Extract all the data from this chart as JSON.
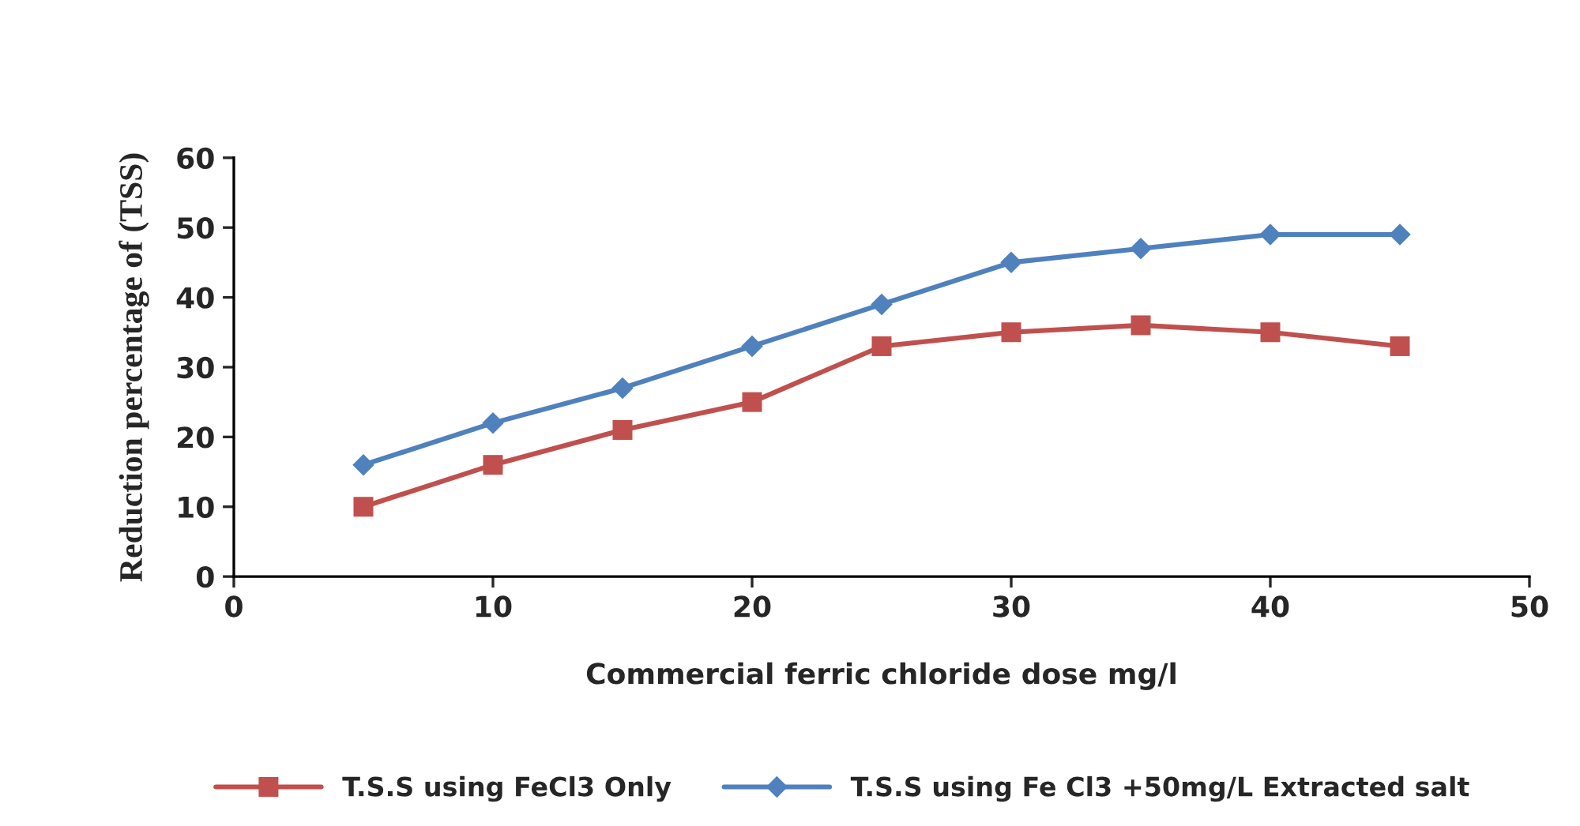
{
  "chart_data": {
    "type": "line",
    "xlabel": "Commercial ferric chloride dose mg/l",
    "ylabel": "Reduction percentage of (TSS)",
    "x": [
      5,
      10,
      15,
      20,
      25,
      30,
      35,
      40,
      45
    ],
    "series": [
      {
        "name": "T.S.S using FeCl3 Only",
        "color": "#c0504d",
        "marker": "square",
        "values": [
          10,
          16,
          21,
          25,
          33,
          35,
          36,
          35,
          33
        ]
      },
      {
        "name": "T.S.S using Fe Cl3 +50mg/L Extracted salt",
        "color": "#4f81bd",
        "marker": "diamond",
        "values": [
          16,
          22,
          27,
          33,
          39,
          45,
          47,
          49,
          49
        ]
      }
    ],
    "xlim": [
      0,
      50
    ],
    "xticks": [
      0,
      10,
      20,
      30,
      40,
      50
    ],
    "ylim": [
      0,
      60
    ],
    "yticks": [
      0,
      10,
      20,
      30,
      40,
      50,
      60
    ],
    "grid": false,
    "legend": "bottom",
    "line_style": "solid"
  }
}
